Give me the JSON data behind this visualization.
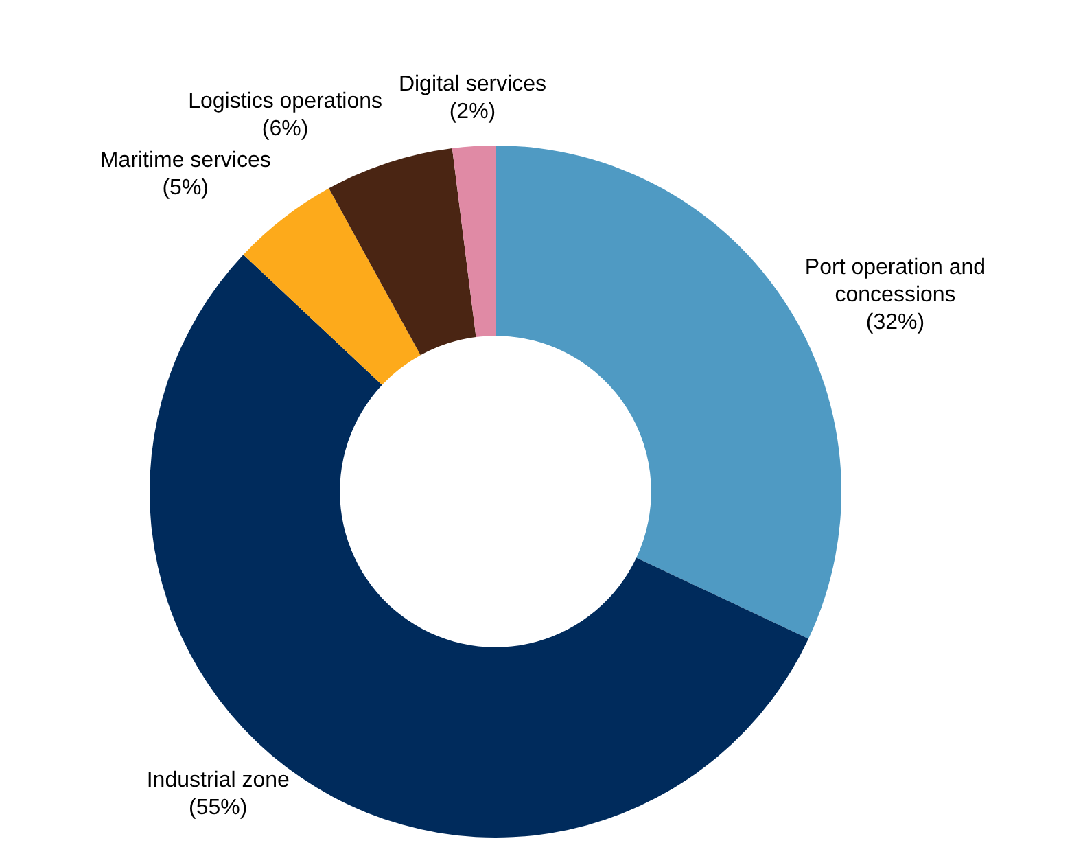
{
  "chart_data": {
    "type": "donut",
    "categories": [
      "Port operation and concessions",
      "Industrial zone",
      "Maritime services",
      "Logistics operations",
      "Digital services"
    ],
    "values": [
      32,
      55,
      5,
      6,
      2
    ],
    "value_labels": [
      "(32%)",
      "(55%)",
      "(5%)",
      "(6%)",
      "(2%)"
    ],
    "colors": [
      "#4f9ac3",
      "#002b5c",
      "#fdaa1b",
      "#4a2513",
      "#e08aa5"
    ],
    "legend": false
  }
}
